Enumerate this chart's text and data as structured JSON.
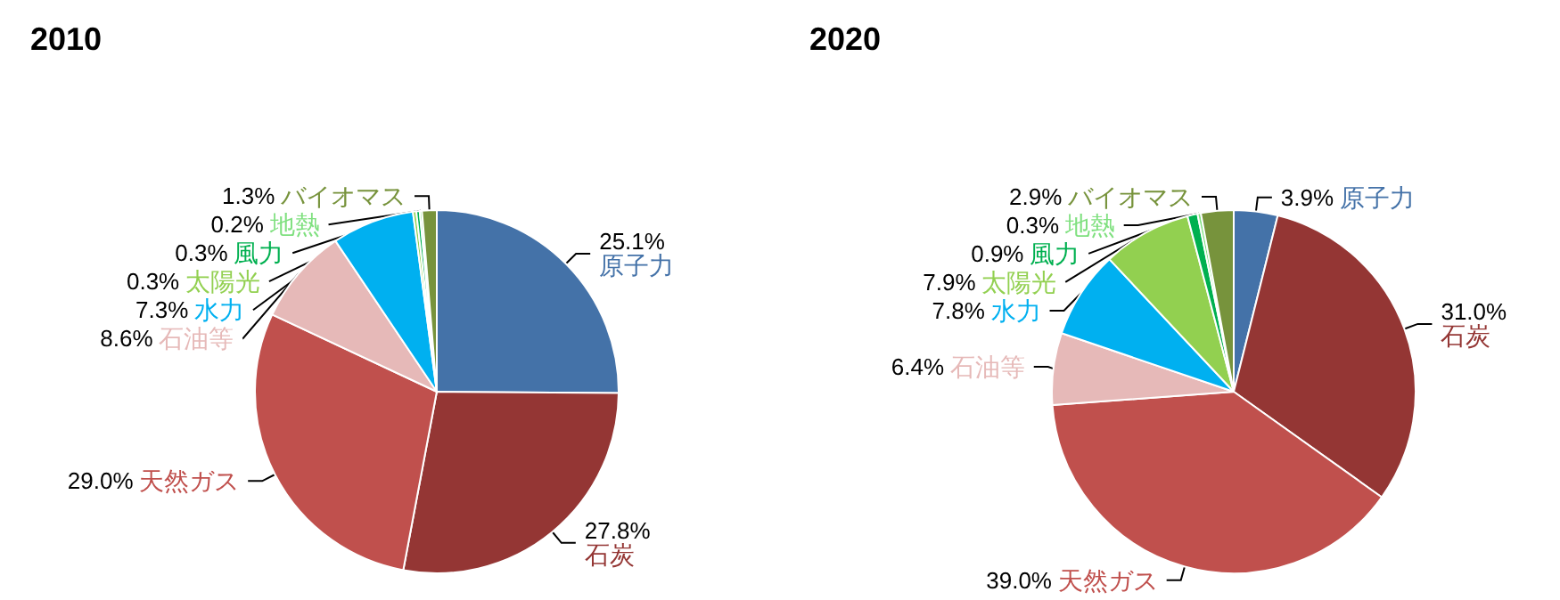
{
  "chart_data": [
    {
      "type": "pie",
      "title": "2010",
      "categories": [
        "原子力",
        "石炭",
        "天然ガス",
        "石油等",
        "水力",
        "太陽光",
        "風力",
        "地熱",
        "バイオマス"
      ],
      "values": [
        25.1,
        27.8,
        29.0,
        8.6,
        7.3,
        0.3,
        0.3,
        0.2,
        1.3
      ],
      "colors": [
        "#4472a8",
        "#943634",
        "#c0504d",
        "#e6b9b8",
        "#00b0f0",
        "#92d050",
        "#00b050",
        "#7fe07f",
        "#77933c"
      ],
      "value_labels": [
        "25.1%",
        "27.8%",
        "29.0%",
        "8.6%",
        "7.3%",
        "0.3%",
        "0.3%",
        "0.2%",
        "1.3%"
      ]
    },
    {
      "type": "pie",
      "title": "2020",
      "categories": [
        "原子力",
        "石炭",
        "天然ガス",
        "石油等",
        "水力",
        "太陽光",
        "風力",
        "地熱",
        "バイオマス"
      ],
      "values": [
        3.9,
        31.0,
        39.0,
        6.4,
        7.8,
        7.9,
        0.9,
        0.3,
        2.9
      ],
      "colors": [
        "#4472a8",
        "#943634",
        "#c0504d",
        "#e6b9b8",
        "#00b0f0",
        "#92d050",
        "#00b050",
        "#7fe07f",
        "#77933c"
      ],
      "value_labels": [
        "3.9%",
        "31.0%",
        "39.0%",
        "6.4%",
        "7.8%",
        "7.9%",
        "0.9%",
        "0.3%",
        "2.9%"
      ]
    }
  ]
}
